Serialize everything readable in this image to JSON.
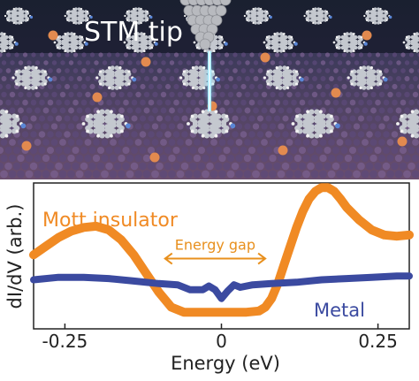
{
  "illustration": {
    "label": "STM tip",
    "colors": {
      "background": "#1c2434",
      "carbon": "#c4c8cf",
      "hydrogen": "#f2f2f2",
      "nitrogen": "#5a86d6",
      "metal_atom": "#e28a4f",
      "substrate": "#6b5a8a",
      "tip": "#b8babf",
      "tunneling_beam": "#66d6ff"
    }
  },
  "chart_data": {
    "type": "line",
    "xlabel": "Energy (eV)",
    "ylabel": "dI/dV (arb.)",
    "xlim": [
      -0.3,
      0.3
    ],
    "ylim": [
      0,
      1
    ],
    "xticks": [
      -0.25,
      0,
      0.25
    ],
    "xtick_labels": [
      "-0.25",
      "0",
      "0.25"
    ],
    "grid": false,
    "series": [
      {
        "name": "Mott insulator",
        "color": "#f08a24",
        "x": [
          -0.3,
          -0.28,
          -0.26,
          -0.24,
          -0.22,
          -0.2,
          -0.18,
          -0.16,
          -0.14,
          -0.12,
          -0.1,
          -0.08,
          -0.06,
          -0.04,
          -0.02,
          0,
          0.02,
          0.04,
          0.06,
          0.07,
          0.08,
          0.09,
          0.1,
          0.11,
          0.12,
          0.13,
          0.14,
          0.15,
          0.16,
          0.17,
          0.18,
          0.19,
          0.2,
          0.22,
          0.24,
          0.26,
          0.28,
          0.3
        ],
        "y": [
          0.48,
          0.55,
          0.62,
          0.67,
          0.7,
          0.71,
          0.68,
          0.6,
          0.48,
          0.33,
          0.18,
          0.06,
          0.02,
          0.02,
          0.02,
          0.02,
          0.02,
          0.02,
          0.03,
          0.06,
          0.13,
          0.25,
          0.4,
          0.55,
          0.7,
          0.83,
          0.93,
          0.99,
          1.02,
          1.02,
          0.99,
          0.93,
          0.86,
          0.76,
          0.68,
          0.64,
          0.63,
          0.64
        ]
      },
      {
        "name": "Metal",
        "color": "#3b4aa0",
        "x": [
          -0.3,
          -0.26,
          -0.22,
          -0.18,
          -0.14,
          -0.1,
          -0.07,
          -0.05,
          -0.03,
          -0.02,
          -0.01,
          0,
          0.01,
          0.02,
          0.03,
          0.05,
          0.08,
          0.12,
          0.16,
          0.2,
          0.24,
          0.28,
          0.3
        ],
        "y": [
          0.28,
          0.3,
          0.3,
          0.29,
          0.27,
          0.25,
          0.24,
          0.2,
          0.2,
          0.23,
          0.2,
          0.13,
          0.19,
          0.24,
          0.22,
          0.24,
          0.25,
          0.26,
          0.28,
          0.29,
          0.3,
          0.31,
          0.31
        ]
      }
    ],
    "annotations": [
      {
        "text": "Energy gap",
        "color": "#e8901e",
        "arrow_from": -0.09,
        "arrow_to": 0.07,
        "y": 0.45
      }
    ]
  }
}
